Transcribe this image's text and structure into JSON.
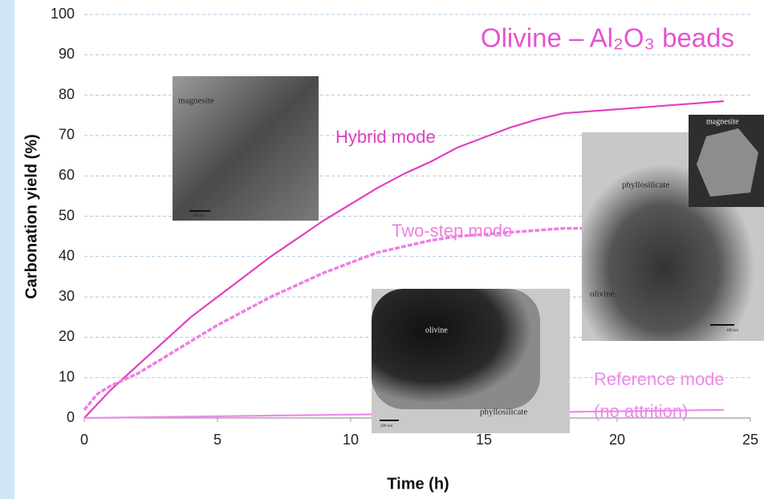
{
  "chart_data": {
    "type": "line",
    "title": "Olivine – Al₂O₃ beads",
    "xlabel": "Time (h)",
    "ylabel": "Carbonation yield (%)",
    "xlim": [
      0,
      25
    ],
    "xticks": [
      0,
      5,
      10,
      15,
      20,
      25
    ],
    "ylim": [
      0,
      100
    ],
    "yticks": [
      0,
      10,
      20,
      30,
      40,
      50,
      60,
      70,
      80,
      90,
      100
    ],
    "grid": true,
    "series": [
      {
        "name": "Hybrid mode",
        "color": "#e23fbf",
        "dashed": false,
        "x": [
          0,
          1,
          2,
          3,
          4,
          5,
          6,
          7,
          8,
          9,
          10,
          11,
          12,
          13,
          14,
          15,
          16,
          17,
          18,
          19,
          20,
          21,
          22,
          23,
          24
        ],
        "values": [
          0,
          7,
          13,
          19,
          25,
          30,
          35,
          40,
          44.5,
          49,
          53,
          57,
          60.5,
          63.5,
          67,
          69.5,
          72,
          74,
          75.5,
          76,
          76.5,
          77,
          77.5,
          78,
          78.5
        ]
      },
      {
        "name": "Two-step mode",
        "color": "#ee7fe2",
        "dashed": true,
        "x": [
          0,
          0.5,
          1,
          2,
          3,
          4,
          5,
          6,
          7,
          8,
          9,
          10,
          11,
          12,
          13,
          14,
          15,
          16,
          17,
          18,
          19
        ],
        "values": [
          2,
          6,
          8,
          11,
          15,
          19,
          23,
          26.5,
          30,
          33,
          36,
          38.5,
          41,
          42.5,
          44,
          45,
          45.5,
          46,
          46.5,
          47,
          47
        ]
      },
      {
        "name": "Reference mode",
        "color": "#ee8ae8",
        "dashed": false,
        "x": [
          0,
          6,
          12,
          18,
          24
        ],
        "values": [
          0,
          0.5,
          1,
          1.5,
          2
        ]
      }
    ],
    "annotations": [
      "(no attrition)"
    ],
    "micrographs": [
      {
        "labels": [
          "magnesite",
          "100 nm"
        ]
      },
      {
        "labels": [
          "olivine",
          "phyllosilicate",
          "200 nm"
        ]
      },
      {
        "labels": [
          "phyllosilicate",
          "olivine",
          "100 nm"
        ]
      },
      {
        "labels": [
          "magnesite"
        ]
      }
    ]
  }
}
